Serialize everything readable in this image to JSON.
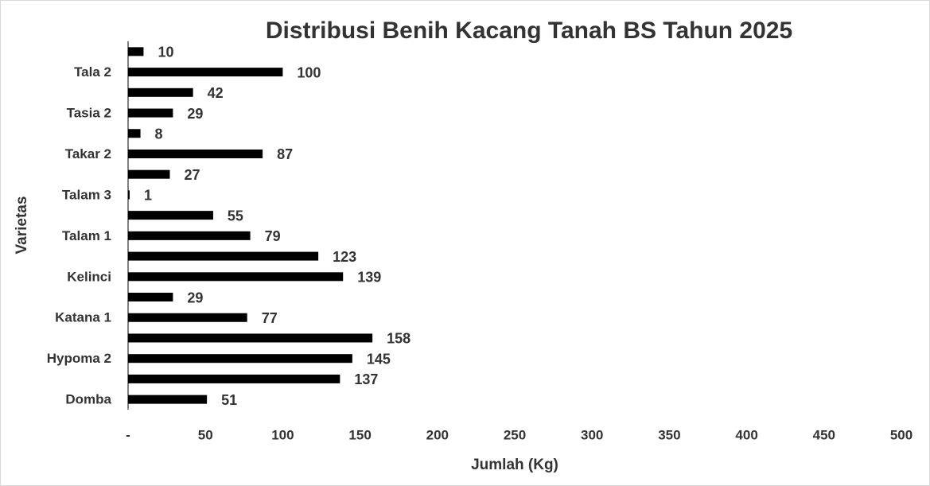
{
  "chart_data": {
    "type": "barh",
    "title": "Distribusi Benih Kacang Tanah BS Tahun 2025",
    "xlabel": "Jumlah (Kg)",
    "ylabel": "Varietas",
    "categories": [
      "Domba",
      null,
      "Hypoma 2",
      null,
      "Katana 1",
      null,
      "Kelinci",
      null,
      "Talam 1",
      null,
      "Talam 3",
      null,
      "Takar 2",
      null,
      "Tasia 2",
      null,
      "Tala 2",
      null
    ],
    "values": [
      51,
      137,
      145,
      158,
      77,
      29,
      139,
      123,
      79,
      55,
      1,
      27,
      87,
      8,
      29,
      42,
      100,
      10
    ],
    "color": "#000000",
    "xlim": [
      0,
      500
    ],
    "xticks": [
      {
        "value": 0,
        "label": "-"
      },
      50,
      100,
      150,
      200,
      250,
      300,
      350,
      400,
      450,
      500
    ],
    "grid": false
  }
}
